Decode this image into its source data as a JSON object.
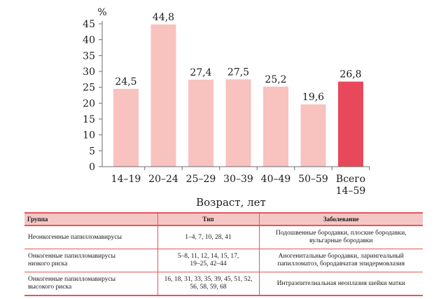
{
  "chart_data": {
    "type": "bar",
    "unit_label": "%",
    "categories": [
      "14–19",
      "20–24",
      "25–29",
      "30–39",
      "40–49",
      "50–59",
      "Всего|14–59"
    ],
    "values": [
      24.5,
      44.8,
      27.4,
      27.5,
      25.2,
      19.6,
      26.8
    ],
    "value_labels": [
      "24,5",
      "44,8",
      "27,4",
      "27,5",
      "25,2",
      "19,6",
      "26,8"
    ],
    "highlight_index": 6,
    "xlabel": "Возраст, лет",
    "ylabel": "%",
    "ylim": [
      0,
      45
    ],
    "yticks": [
      0,
      5,
      10,
      15,
      20,
      25,
      30,
      35,
      40,
      45
    ],
    "grid": false,
    "colors": {
      "bar": "#f8c2bf",
      "highlight": "#e8495a",
      "axis": "#6d6d6d"
    }
  },
  "table": {
    "headers": [
      "Группа",
      "Тип",
      "Заболевание"
    ],
    "rows": [
      {
        "group": "Неонкогенные папилломавирусы",
        "type": "1–4, 7, 10, 28, 41",
        "disease": [
          "Подошвенные бородавки, плоские бородавки,",
          "вульгарные бородавки"
        ]
      },
      {
        "group": [
          "Онкогенные папилломавирусы",
          "низкого риска"
        ],
        "type": [
          "5–8, 11, 12, 14, 15, 17,",
          "19–25, 42–44"
        ],
        "disease": [
          "Аногенитальные бородавки, ларингеальный",
          "папилломатоз, бородавчатая эпидермовлазия"
        ]
      },
      {
        "group": [
          "Онкогенные папилломавирусы",
          "высокого риска"
        ],
        "type": [
          "16, 18, 31, 33, 35, 39, 45, 51, 52,",
          "56, 58, 59, 68"
        ],
        "disease": "Интраэпителиальная неоплазия шейки матки"
      }
    ]
  }
}
